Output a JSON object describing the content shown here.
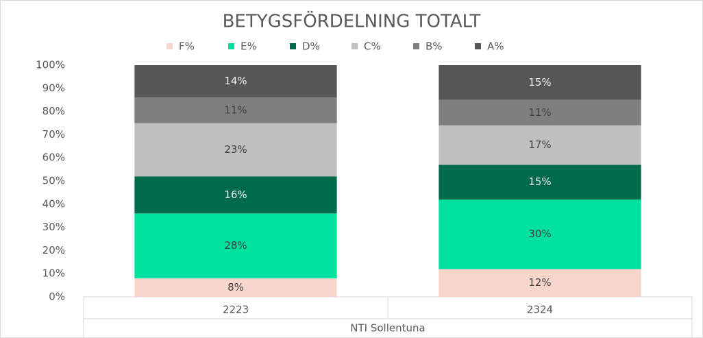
{
  "chart_data": {
    "type": "stacked_bar_100",
    "title": "BETYGSFÖRDELNING TOTALT",
    "categories": [
      "2223",
      "2324"
    ],
    "group_label": "NTI Sollentuna",
    "series": [
      {
        "name": "F%",
        "color": "#f8d6cc",
        "values": [
          8,
          12
        ],
        "value_labels": [
          "8%",
          "12%"
        ]
      },
      {
        "name": "E%",
        "color": "#00e09e",
        "values": [
          28,
          30
        ],
        "value_labels": [
          "28%",
          "30%"
        ]
      },
      {
        "name": "D%",
        "color": "#006b4b",
        "values": [
          16,
          15
        ],
        "value_labels": [
          "16%",
          "15%"
        ]
      },
      {
        "name": "C%",
        "color": "#bfbfbf",
        "values": [
          23,
          17
        ],
        "value_labels": [
          "23%",
          "17%"
        ]
      },
      {
        "name": "B%",
        "color": "#7f7f7f",
        "values": [
          11,
          11
        ],
        "value_labels": [
          "11%",
          "11%"
        ]
      },
      {
        "name": "A%",
        "color": "#565656",
        "values": [
          14,
          15
        ],
        "value_labels": [
          "14%",
          "15%"
        ]
      }
    ],
    "ylim": [
      0,
      100
    ],
    "yticks": [
      {
        "value": 0,
        "label": "0%"
      },
      {
        "value": 10,
        "label": "10%"
      },
      {
        "value": 20,
        "label": "20%"
      },
      {
        "value": 30,
        "label": "30%"
      },
      {
        "value": 40,
        "label": "40%"
      },
      {
        "value": 50,
        "label": "50%"
      },
      {
        "value": 60,
        "label": "60%"
      },
      {
        "value": 70,
        "label": "70%"
      },
      {
        "value": 80,
        "label": "80%"
      },
      {
        "value": 90,
        "label": "90%"
      },
      {
        "value": 100,
        "label": "100%"
      }
    ],
    "legend": "top"
  }
}
